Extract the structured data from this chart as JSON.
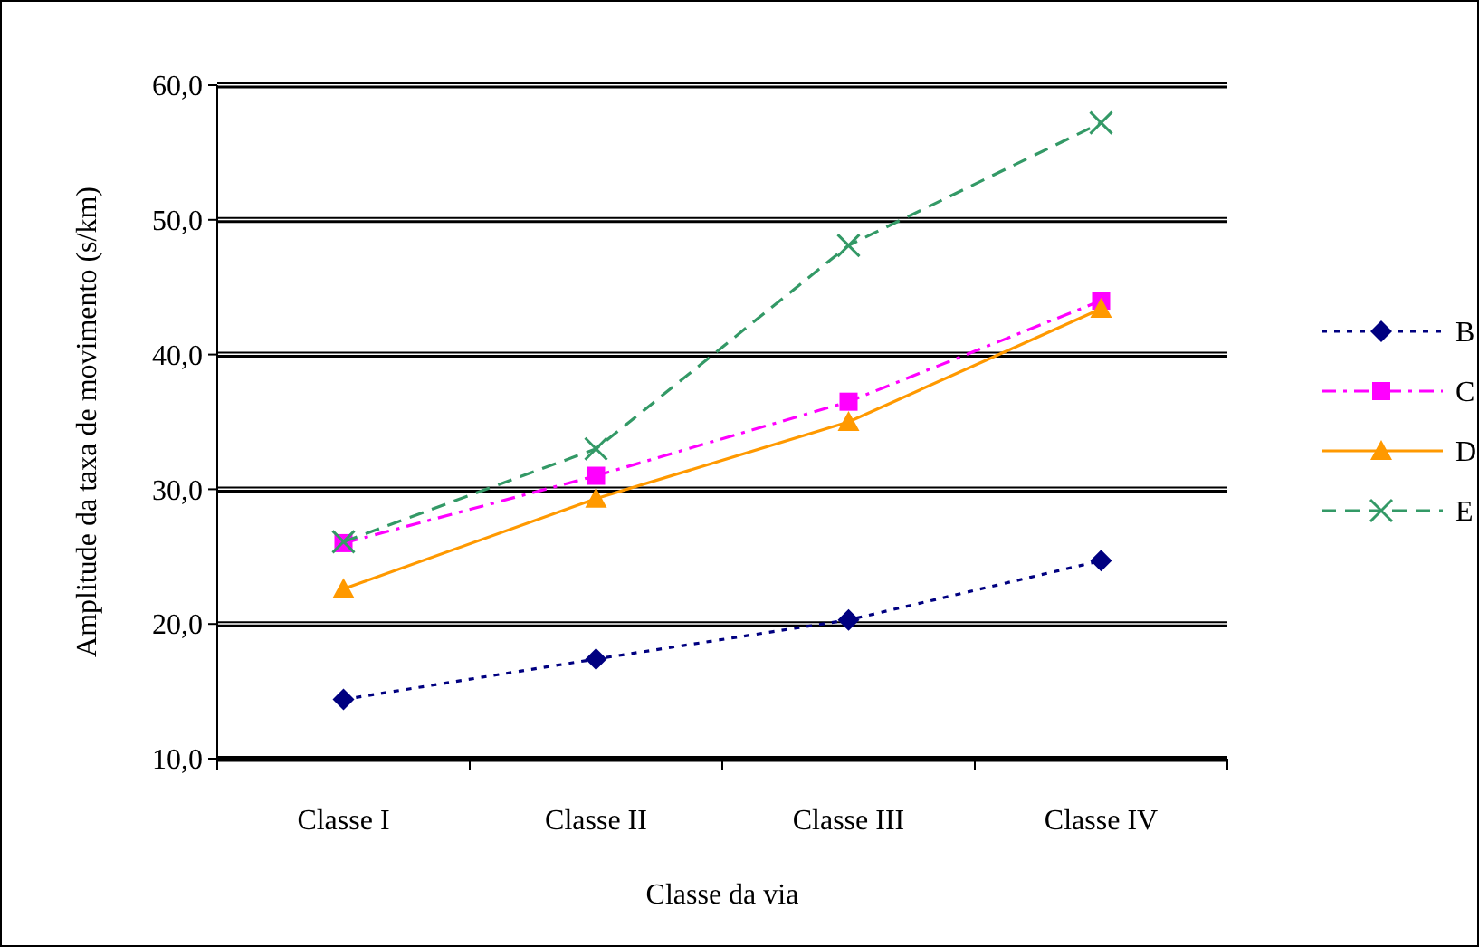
{
  "chart_data": {
    "type": "line",
    "xlabel": "Classe da via",
    "ylabel": "Amplitude da taxa de movimento (s/km)",
    "categories": [
      "Classe I",
      "Classe II",
      "Classe III",
      "Classe IV"
    ],
    "ylim": [
      10,
      60
    ],
    "yticks": [
      {
        "value": 10,
        "label": "10,0"
      },
      {
        "value": 20,
        "label": "20,0"
      },
      {
        "value": 30,
        "label": "30,0"
      },
      {
        "value": 40,
        "label": "40,0"
      },
      {
        "value": 50,
        "label": "50,0"
      },
      {
        "value": 60,
        "label": "60,0"
      }
    ],
    "grid": "y",
    "legend": "right",
    "series": [
      {
        "name": "B",
        "color": "#000080",
        "values": [
          14.4,
          17.4,
          20.3,
          24.7
        ],
        "marker": "diamond",
        "line_style": "dotted"
      },
      {
        "name": "C",
        "color": "#ff00ff",
        "values": [
          26.0,
          31.0,
          36.5,
          44.0
        ],
        "marker": "square",
        "line_style": "dashdot"
      },
      {
        "name": "D",
        "color": "#ff9900",
        "values": [
          22.6,
          29.3,
          35.0,
          43.4
        ],
        "marker": "triangle",
        "line_style": "solid"
      },
      {
        "name": "E",
        "color": "#339966",
        "values": [
          26.1,
          33.0,
          48.1,
          57.2
        ],
        "marker": "cross",
        "line_style": "dashed"
      }
    ]
  }
}
